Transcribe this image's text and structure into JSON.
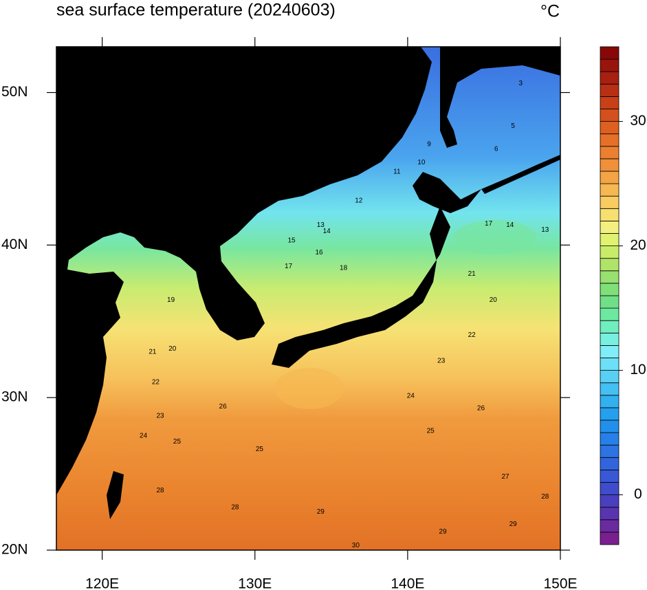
{
  "chart_data": {
    "type": "contour-map",
    "title": "sea surface temperature (20240603)",
    "unit": "°C",
    "xlim": [
      117,
      150
    ],
    "ylim": [
      20,
      53
    ],
    "xticks": [
      {
        "value": 120,
        "label": "120E"
      },
      {
        "value": 130,
        "label": "130E"
      },
      {
        "value": 140,
        "label": "140E"
      },
      {
        "value": 150,
        "label": "150E"
      }
    ],
    "yticks": [
      {
        "value": 20,
        "label": "20N"
      },
      {
        "value": 30,
        "label": "30N"
      },
      {
        "value": 40,
        "label": "40N"
      },
      {
        "value": 50,
        "label": "50N"
      }
    ],
    "colorbar": {
      "lim": [
        -4,
        36
      ],
      "ticks": [
        0,
        10,
        20,
        30
      ],
      "colors": [
        "#7a1f8f",
        "#6a2aa0",
        "#5a34b0",
        "#4a3fbf",
        "#3f4ccc",
        "#3858d6",
        "#3265dd",
        "#2c73e3",
        "#2680e8",
        "#2090ec",
        "#24a0ee",
        "#32b0f0",
        "#44c0f2",
        "#58d0f4",
        "#6ce0f6",
        "#80eef8",
        "#78f0e0",
        "#70eec0",
        "#6ce8a0",
        "#70e088",
        "#80e078",
        "#98e070",
        "#b0e468",
        "#c8ec68",
        "#e0f270",
        "#f4f080",
        "#f8e070",
        "#f8cc60",
        "#f6b850",
        "#f4a444",
        "#f0903a",
        "#ec8030",
        "#e67028",
        "#de6020",
        "#d4501c",
        "#c84018",
        "#b83014",
        "#a82010",
        "#98140c",
        "#880808"
      ]
    },
    "contour_labels": [
      {
        "lon": 124.5,
        "lat": 36.4,
        "value": 19
      },
      {
        "lon": 124.6,
        "lat": 33.2,
        "value": 20
      },
      {
        "lon": 123.3,
        "lat": 33.0,
        "value": 21
      },
      {
        "lon": 123.5,
        "lat": 31.0,
        "value": 22
      },
      {
        "lon": 123.8,
        "lat": 28.8,
        "value": 23
      },
      {
        "lon": 122.7,
        "lat": 27.5,
        "value": 24
      },
      {
        "lon": 124.9,
        "lat": 27.1,
        "value": 25
      },
      {
        "lon": 127.9,
        "lat": 29.4,
        "value": 26
      },
      {
        "lon": 130.3,
        "lat": 26.6,
        "value": 25
      },
      {
        "lon": 123.8,
        "lat": 23.9,
        "value": 28
      },
      {
        "lon": 128.7,
        "lat": 22.8,
        "value": 28
      },
      {
        "lon": 134.3,
        "lat": 22.5,
        "value": 29
      },
      {
        "lon": 136.6,
        "lat": 20.3,
        "value": 30
      },
      {
        "lon": 142.3,
        "lat": 21.2,
        "value": 29
      },
      {
        "lon": 146.9,
        "lat": 21.7,
        "value": 29
      },
      {
        "lon": 149.0,
        "lat": 23.5,
        "value": 28
      },
      {
        "lon": 146.4,
        "lat": 24.8,
        "value": 27
      },
      {
        "lon": 144.8,
        "lat": 29.3,
        "value": 26
      },
      {
        "lon": 141.5,
        "lat": 27.8,
        "value": 25
      },
      {
        "lon": 140.2,
        "lat": 30.1,
        "value": 24
      },
      {
        "lon": 142.2,
        "lat": 32.4,
        "value": 23
      },
      {
        "lon": 144.2,
        "lat": 34.1,
        "value": 22
      },
      {
        "lon": 144.2,
        "lat": 38.1,
        "value": 21
      },
      {
        "lon": 145.6,
        "lat": 36.4,
        "value": 20
      },
      {
        "lon": 135.8,
        "lat": 38.5,
        "value": 18
      },
      {
        "lon": 132.2,
        "lat": 38.6,
        "value": 17
      },
      {
        "lon": 134.2,
        "lat": 39.5,
        "value": 16
      },
      {
        "lon": 132.4,
        "lat": 40.3,
        "value": 15
      },
      {
        "lon": 134.7,
        "lat": 40.9,
        "value": 14
      },
      {
        "lon": 134.3,
        "lat": 41.3,
        "value": 13
      },
      {
        "lon": 136.8,
        "lat": 42.9,
        "value": 12
      },
      {
        "lon": 139.3,
        "lat": 44.8,
        "value": 11
      },
      {
        "lon": 140.9,
        "lat": 45.4,
        "value": 10
      },
      {
        "lon": 141.4,
        "lat": 46.6,
        "value": 9
      },
      {
        "lon": 145.8,
        "lat": 46.3,
        "value": 6
      },
      {
        "lon": 146.9,
        "lat": 47.8,
        "value": 5
      },
      {
        "lon": 147.4,
        "lat": 50.6,
        "value": 3
      },
      {
        "lon": 145.3,
        "lat": 41.4,
        "value": 17
      },
      {
        "lon": 146.7,
        "lat": 41.3,
        "value": 14
      },
      {
        "lon": 149.0,
        "lat": 41.0,
        "value": 13
      }
    ]
  }
}
